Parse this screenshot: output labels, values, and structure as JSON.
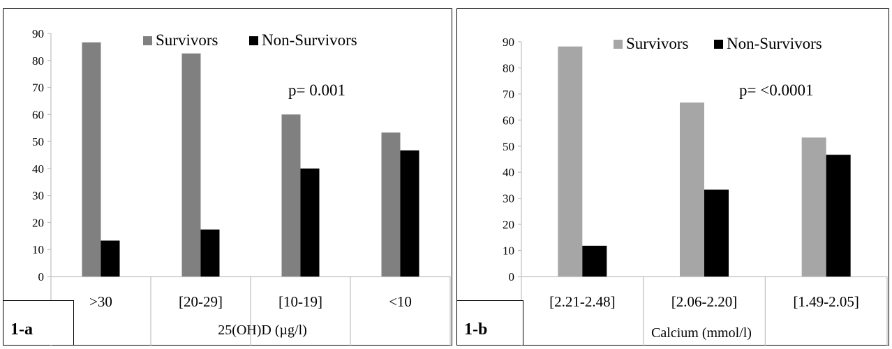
{
  "colors": {
    "survivors_a": "#808080",
    "survivors_b": "#a6a6a6",
    "non_survivors": "#000000",
    "axis": "#bfbfbf"
  },
  "chart_data": [
    {
      "type": "bar",
      "panel_label": "1-a",
      "categories": [
        ">30",
        "[20-29]",
        "[10-19]",
        "<10"
      ],
      "series": [
        {
          "name": "Survivors",
          "values": [
            86.7,
            82.6,
            60,
            53.3
          ]
        },
        {
          "name": "Non-Survivors",
          "values": [
            13.3,
            17.4,
            40,
            46.7
          ]
        }
      ],
      "xlabel": "25(OH)D (µg/l)",
      "ylabel": "",
      "ylim": [
        0,
        90
      ],
      "yticks": [
        0,
        10,
        20,
        30,
        40,
        50,
        60,
        70,
        80,
        90
      ],
      "annotation": "p= 0.001",
      "legend": "top",
      "grid": false
    },
    {
      "type": "bar",
      "panel_label": "1-b",
      "categories": [
        "[2.21-2.48]",
        "[2.06-2.20]",
        "[1.49-2.05]"
      ],
      "series": [
        {
          "name": "Survivors",
          "values": [
            88.2,
            66.7,
            53.3
          ]
        },
        {
          "name": "Non-Survivors",
          "values": [
            11.8,
            33.3,
            46.7
          ]
        }
      ],
      "xlabel": "Calcium (mmol/l)",
      "ylabel": "",
      "ylim": [
        0,
        90
      ],
      "yticks": [
        0,
        10,
        20,
        30,
        40,
        50,
        60,
        70,
        80,
        90
      ],
      "annotation": "p= <0.0001",
      "legend": "top",
      "grid": false
    }
  ]
}
